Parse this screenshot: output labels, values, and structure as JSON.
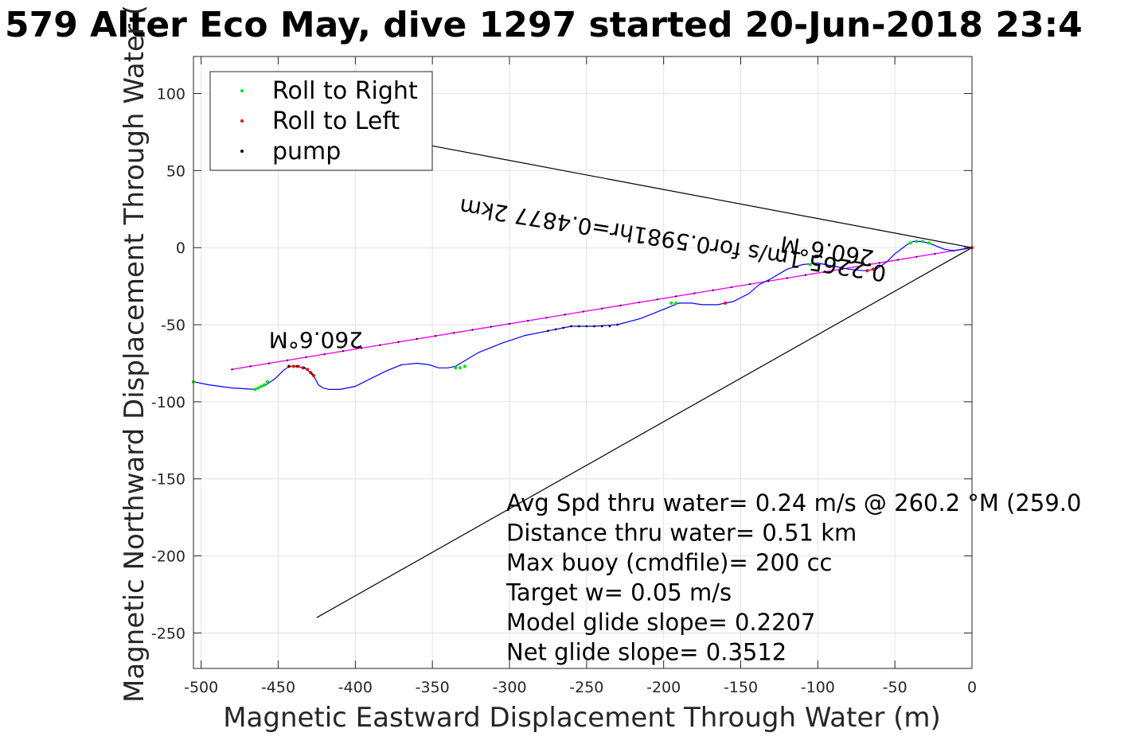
{
  "chart_data": {
    "type": "line",
    "title": "579 Alter Eco May, dive 1297 started 20-Jun-2018 23:4",
    "xlabel": "Magnetic Eastward Displacement Through Water (m)",
    "ylabel": "Magnetic Northward Displacement Through Water (",
    "xlim": [
      -505,
      0
    ],
    "ylim": [
      -273,
      124
    ],
    "xticks": [
      -500,
      -450,
      -400,
      -350,
      -300,
      -250,
      -200,
      -150,
      -100,
      -50,
      0
    ],
    "yticks": [
      100,
      50,
      0,
      -50,
      -100,
      -150,
      -200,
      -250
    ],
    "grid": true,
    "legend": {
      "placement": "top-left",
      "entries": [
        {
          "label": "Roll to Right",
          "color": "#00e000"
        },
        {
          "label": "Roll to Left",
          "color": "#ff0000"
        },
        {
          "label": "pump",
          "color": "#000000"
        }
      ]
    },
    "track": {
      "color": "#0000ff",
      "x": [
        -505,
        -495,
        -480,
        -465,
        -458,
        -452,
        -447,
        -443,
        -438,
        -433,
        -429,
        -426,
        -424,
        -421,
        -417,
        -410,
        -400,
        -390,
        -380,
        -370,
        -360,
        -352,
        -346,
        -340,
        -335,
        -330,
        -320,
        -305,
        -290,
        -275,
        -260,
        -245,
        -230,
        -215,
        -200,
        -190,
        -182,
        -175,
        -165,
        -155,
        -145,
        -138,
        -130,
        -120,
        -110,
        -100,
        -90,
        -80,
        -70,
        -62,
        -55,
        -50,
        -46,
        -42,
        -38,
        -33,
        -28,
        -23,
        -18,
        -12,
        -6,
        0
      ],
      "y": [
        -87,
        -89,
        -91,
        -92,
        -89,
        -85,
        -80,
        -77,
        -77,
        -78,
        -81,
        -85,
        -89,
        -91,
        -92,
        -92,
        -90,
        -85,
        -80,
        -76,
        -75,
        -76,
        -78,
        -78,
        -77,
        -74,
        -68,
        -62,
        -57,
        -54,
        -51,
        -51,
        -50,
        -46,
        -40,
        -36,
        -36,
        -37,
        -37,
        -35,
        -30,
        -24,
        -20,
        -14,
        -11,
        -10,
        -12,
        -14,
        -15,
        -14,
        -9,
        -4,
        -1,
        2,
        4,
        4,
        3,
        1,
        -1,
        -2,
        -1,
        0
      ]
    },
    "roll_right_points": [
      {
        "x": -505,
        "y": -87
      },
      {
        "x": -465,
        "y": -92
      },
      {
        "x": -463,
        "y": -91
      },
      {
        "x": -461,
        "y": -90
      },
      {
        "x": -459,
        "y": -89
      },
      {
        "x": -457,
        "y": -87
      },
      {
        "x": -335,
        "y": -78
      },
      {
        "x": -332,
        "y": -78
      },
      {
        "x": -329,
        "y": -77
      },
      {
        "x": -195,
        "y": -36
      },
      {
        "x": -192,
        "y": -36
      },
      {
        "x": -105,
        "y": -11
      },
      {
        "x": -40,
        "y": 3
      },
      {
        "x": -36,
        "y": 4
      },
      {
        "x": -32,
        "y": 4
      },
      {
        "x": -28,
        "y": 3
      }
    ],
    "roll_left_points": [
      {
        "x": -443,
        "y": -77
      },
      {
        "x": -440,
        "y": -77
      },
      {
        "x": -437,
        "y": -77
      },
      {
        "x": -434,
        "y": -78
      },
      {
        "x": -431,
        "y": -79
      },
      {
        "x": -429,
        "y": -81
      },
      {
        "x": -427,
        "y": -83
      },
      {
        "x": -160,
        "y": -36
      },
      {
        "x": -68,
        "y": -15
      },
      {
        "x": -64,
        "y": -14
      },
      {
        "x": 0,
        "y": 0
      }
    ],
    "pump_points": [
      {
        "x": -443,
        "y": -77
      },
      {
        "x": -438,
        "y": -77
      },
      {
        "x": -433,
        "y": -78
      },
      {
        "x": -428,
        "y": -82
      },
      {
        "x": -275,
        "y": -54
      },
      {
        "x": -270,
        "y": -53
      },
      {
        "x": -265,
        "y": -52
      },
      {
        "x": -260,
        "y": -51
      },
      {
        "x": -255,
        "y": -51
      },
      {
        "x": -250,
        "y": -51
      },
      {
        "x": -245,
        "y": -51
      },
      {
        "x": -240,
        "y": -51
      },
      {
        "x": -235,
        "y": -51
      },
      {
        "x": -230,
        "y": -50
      }
    ],
    "heading_line": {
      "color": "#ff00ff",
      "x": [
        -480,
        0
      ],
      "y": [
        -79,
        0
      ]
    },
    "wedge_lines": [
      {
        "color": "#000000",
        "x": [
          -350,
          0
        ],
        "y": [
          66,
          0
        ]
      },
      {
        "color": "#000000",
        "x": [
          -425,
          0
        ],
        "y": [
          -240,
          0
        ]
      }
    ],
    "rotated_labels": [
      {
        "text": "260.6°M",
        "x": -395,
        "y": -55,
        "angle": 180
      },
      {
        "text": "260.6°M",
        "x": -63,
        "y": -2,
        "angle": 189
      },
      {
        "text": "0.2265 1m/s for0.5981hr=0.4877 2km",
        "x": -55,
        "y": -12,
        "angle": 189
      }
    ],
    "annotations": [
      "Avg Spd thru water=  0.24 m/s @ 260.2 °M (259.0",
      "Distance thru water=  0.51 km",
      "Max buoy (cmdfile)= 200 cc",
      "Target w= 0.05 m/s",
      "Model glide slope= 0.2207",
      "Net glide slope= 0.3512"
    ]
  }
}
